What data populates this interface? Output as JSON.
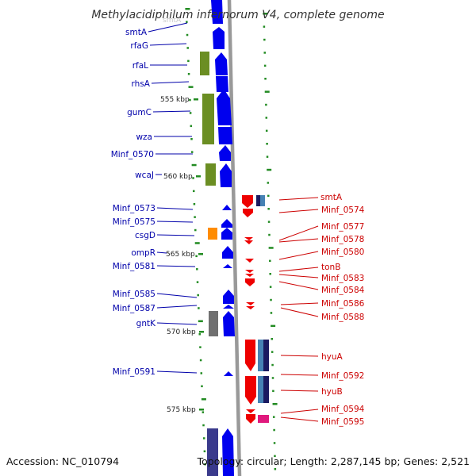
{
  "title": "Methylacidiphilum infernorum V4, complete genome",
  "accession": "Accession: NC_010794",
  "topology": "Topology: circular; Length: 2,287,145 bp; Genes: 2,521",
  "colors": {
    "forward": "#0000ee",
    "reverse": "#ee0000",
    "forward_label": "#0000aa",
    "reverse_label": "#cc0000",
    "olive": "#6b8e23",
    "orange": "#ff8c00",
    "grey": "#707070",
    "navy": "#1a1a60",
    "steel": "#4682b4",
    "magenta": "#e0197d",
    "indigo": "#3a3a8c",
    "tick": "#228b22",
    "backbone": "#999999"
  },
  "kbp_markers": [
    {
      "label": "555 kbp"
    },
    {
      "label": "560 kbp"
    },
    {
      "label": "565 kbp"
    },
    {
      "label": "570 kbp"
    },
    {
      "label": "575 kbp"
    }
  ],
  "forward_genes": [
    {
      "label": "smtA"
    },
    {
      "label": "rfaG"
    },
    {
      "label": "rfaL"
    },
    {
      "label": "rhsA"
    },
    {
      "label": "gumC"
    },
    {
      "label": "wza"
    },
    {
      "label": "Minf_0570"
    },
    {
      "label": "wcaJ"
    },
    {
      "label": "Minf_0573"
    },
    {
      "label": "Minf_0575"
    },
    {
      "label": "csgD"
    },
    {
      "label": "ompR"
    },
    {
      "label": "Minf_0581"
    },
    {
      "label": "Minf_0585"
    },
    {
      "label": "Minf_0587"
    },
    {
      "label": "gntK"
    },
    {
      "label": "Minf_0591"
    }
  ],
  "reverse_genes": [
    {
      "label": "smtA"
    },
    {
      "label": "Minf_0574"
    },
    {
      "label": "Minf_0577"
    },
    {
      "label": "Minf_0578"
    },
    {
      "label": "Minf_0580"
    },
    {
      "label": "tonB"
    },
    {
      "label": "Minf_0583"
    },
    {
      "label": "Minf_0584"
    },
    {
      "label": "Minf_0586"
    },
    {
      "label": "Minf_0588"
    },
    {
      "label": "hyuA"
    },
    {
      "label": "Minf_0592"
    },
    {
      "label": "hyuB"
    },
    {
      "label": "Minf_0594"
    },
    {
      "label": "Minf_0595"
    }
  ]
}
